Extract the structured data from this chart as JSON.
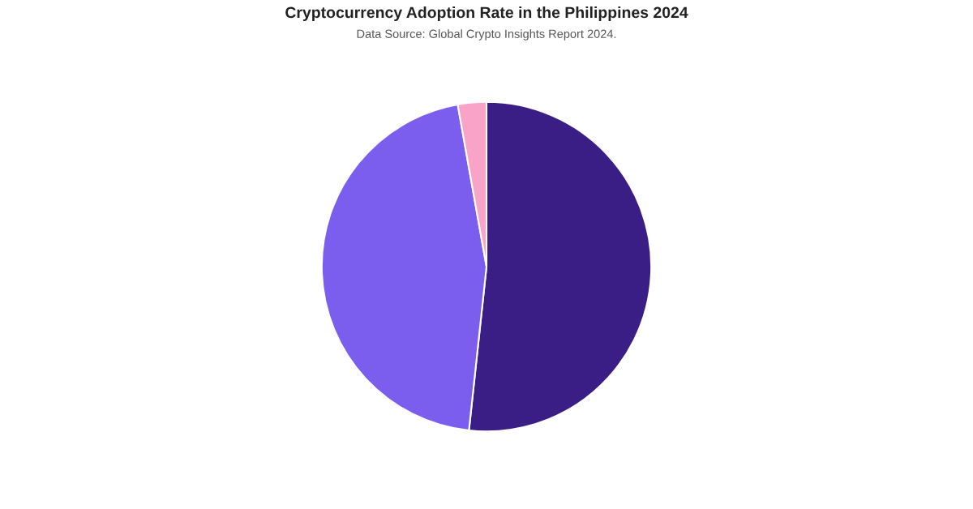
{
  "chart_data": {
    "type": "pie",
    "title": "Cryptocurrency Adoption Rate in the Philippines 2024",
    "subtitle": "Data Source: Global Crypto Insights Report 2024.",
    "categories": [
      null,
      null,
      null
    ],
    "values": [
      51.7,
      45.5,
      2.8
    ],
    "colors": [
      "#3a1e85",
      "#7b5eee",
      "#f9a3c9"
    ],
    "legend": false
  }
}
